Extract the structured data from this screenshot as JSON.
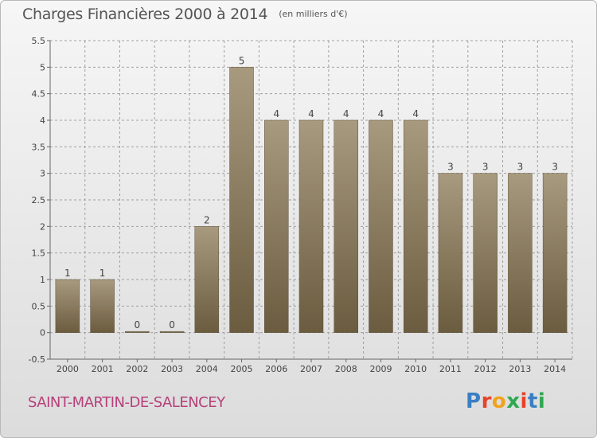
{
  "header": {
    "title": "Charges Financières 2000 à 2014",
    "subtitle": "(en milliers d'€)"
  },
  "footer": {
    "place": "SAINT-MARTIN-DE-SALENCEY",
    "logo": "Proxiti"
  },
  "colors": {
    "bar_top": "#a89a7e",
    "bar_bottom": "#6b5c40",
    "grid": "#a0a0a0",
    "title": "#555555",
    "place": "#b5407a"
  },
  "chart_data": {
    "type": "bar",
    "title": "Charges Financières 2000 à 2014",
    "subtitle": "(en milliers d'€)",
    "categories": [
      "2000",
      "2001",
      "2002",
      "2003",
      "2004",
      "2005",
      "2006",
      "2007",
      "2008",
      "2009",
      "2010",
      "2011",
      "2012",
      "2013",
      "2014"
    ],
    "values": [
      1,
      1,
      0,
      0,
      2,
      5,
      4,
      4,
      4,
      4,
      4,
      3,
      3,
      3,
      3
    ],
    "data_labels": [
      "1",
      "1",
      "0",
      "0",
      "2",
      "5",
      "4",
      "4",
      "4",
      "4",
      "4",
      "3",
      "3",
      "3",
      "3"
    ],
    "ylim": [
      -0.5,
      5.5
    ],
    "yticks": [
      "-0.5",
      "0",
      "0.5",
      "1",
      "1.5",
      "2",
      "2.5",
      "3",
      "3.5",
      "4",
      "4.5",
      "5",
      "5.5"
    ],
    "grid": "dashed horizontal",
    "xlabel": "",
    "ylabel": ""
  }
}
